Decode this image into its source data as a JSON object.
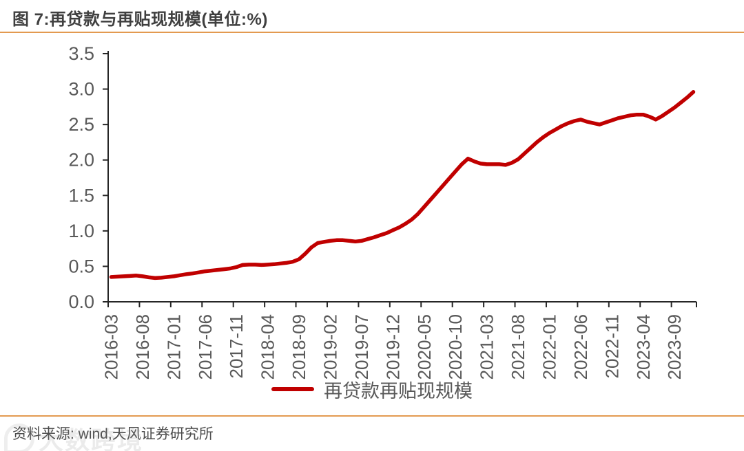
{
  "figure": {
    "title": "图 7:再贷款与再贴现规模(单位:%)",
    "source": "资料来源: wind,天风证券研究所",
    "watermark": "大数跨境"
  },
  "colors": {
    "accent_rule": "#e39a50",
    "series_red": "#c00000",
    "axis": "#262626",
    "tick_text": "#595959"
  },
  "chart_data": {
    "type": "line",
    "title": "再贷款与再贴现规模",
    "unit": "%",
    "ylim": [
      0,
      3.5
    ],
    "ytick_step": 0.5,
    "xtick_every": 5,
    "grid": false,
    "legend_position": "bottom",
    "x": [
      "2016-03",
      "2016-04",
      "2016-05",
      "2016-06",
      "2016-07",
      "2016-08",
      "2016-09",
      "2016-10",
      "2016-11",
      "2016-12",
      "2017-01",
      "2017-02",
      "2017-03",
      "2017-04",
      "2017-05",
      "2017-06",
      "2017-07",
      "2017-08",
      "2017-09",
      "2017-10",
      "2017-11",
      "2017-12",
      "2018-01",
      "2018-02",
      "2018-03",
      "2018-04",
      "2018-05",
      "2018-06",
      "2018-07",
      "2018-08",
      "2018-09",
      "2018-10",
      "2018-11",
      "2018-12",
      "2019-01",
      "2019-02",
      "2019-03",
      "2019-04",
      "2019-05",
      "2019-06",
      "2019-07",
      "2019-08",
      "2019-09",
      "2019-10",
      "2019-11",
      "2019-12",
      "2020-01",
      "2020-02",
      "2020-03",
      "2020-04",
      "2020-05",
      "2020-06",
      "2020-07",
      "2020-08",
      "2020-09",
      "2020-10",
      "2020-11",
      "2020-12",
      "2021-01",
      "2021-02",
      "2021-03",
      "2021-04",
      "2021-05",
      "2021-06",
      "2021-07",
      "2021-08",
      "2021-09",
      "2021-10",
      "2021-11",
      "2021-12",
      "2022-01",
      "2022-02",
      "2022-03",
      "2022-04",
      "2022-05",
      "2022-06",
      "2022-07",
      "2022-08",
      "2022-09",
      "2022-10",
      "2022-11",
      "2022-12",
      "2023-01",
      "2023-02",
      "2023-03",
      "2023-04",
      "2023-05",
      "2023-06",
      "2023-07",
      "2023-08",
      "2023-09",
      "2023-10",
      "2023-11",
      "2023-12"
    ],
    "series": [
      {
        "name": "再贷款再贴现规模",
        "color": "#c00000",
        "values": [
          0.35,
          0.355,
          0.36,
          0.365,
          0.37,
          0.36,
          0.345,
          0.335,
          0.34,
          0.35,
          0.36,
          0.375,
          0.39,
          0.4,
          0.415,
          0.43,
          0.44,
          0.45,
          0.46,
          0.47,
          0.49,
          0.52,
          0.525,
          0.525,
          0.52,
          0.525,
          0.53,
          0.54,
          0.55,
          0.565,
          0.6,
          0.68,
          0.77,
          0.83,
          0.845,
          0.86,
          0.87,
          0.87,
          0.86,
          0.85,
          0.86,
          0.885,
          0.91,
          0.94,
          0.97,
          1.01,
          1.05,
          1.1,
          1.16,
          1.24,
          1.34,
          1.44,
          1.54,
          1.64,
          1.74,
          1.84,
          1.94,
          2.02,
          1.98,
          1.95,
          1.94,
          1.94,
          1.94,
          1.93,
          1.96,
          2.01,
          2.09,
          2.17,
          2.25,
          2.32,
          2.38,
          2.43,
          2.48,
          2.52,
          2.55,
          2.57,
          2.54,
          2.52,
          2.5,
          2.53,
          2.56,
          2.59,
          2.61,
          2.63,
          2.64,
          2.64,
          2.61,
          2.57,
          2.62,
          2.68,
          2.74,
          2.81,
          2.88,
          2.96
        ]
      }
    ]
  }
}
